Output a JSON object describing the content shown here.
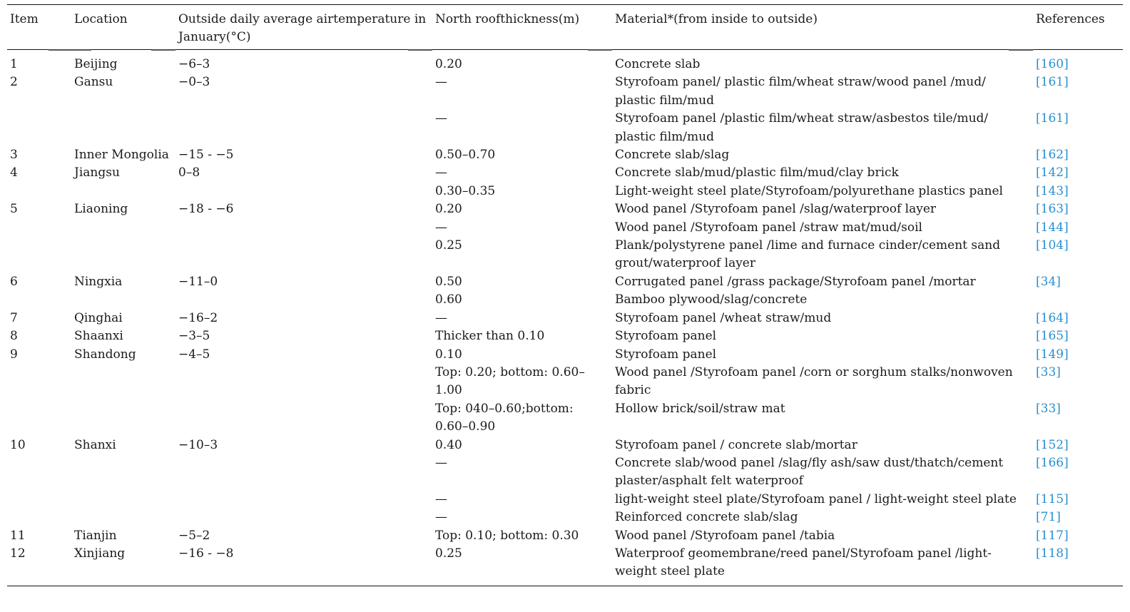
{
  "table": {
    "headers": {
      "item": "Item",
      "location": "Location",
      "temp": "Outside daily average airtemperature in January(°C)",
      "thickness": "North roofthickness(m)",
      "material": "Material*(from inside to outside)",
      "references": "References"
    },
    "rows": [
      {
        "item": "1",
        "location": "Beijing",
        "temp": "−6–3",
        "thickness": "0.20",
        "material": "Concrete slab",
        "ref": "[160]"
      },
      {
        "item": "2",
        "location": "Gansu",
        "temp": "−0–3",
        "thickness": "—",
        "material": "Styrofoam panel/ plastic film/wheat straw/wood panel /mud/ plastic film/mud",
        "ref": "[161]"
      },
      {
        "item": "",
        "location": "",
        "temp": "",
        "thickness": "—",
        "material": "Styrofoam panel /plastic film/wheat straw/asbestos tile/mud/ plastic film/mud",
        "ref": "[161]"
      },
      {
        "item": "3",
        "location": "Inner Mongolia",
        "temp": "−15 - −5",
        "thickness": "0.50–0.70",
        "material": "Concrete slab/slag",
        "ref": "[162]"
      },
      {
        "item": "4",
        "location": "Jiangsu",
        "temp": "0–8",
        "thickness": "—",
        "material": "Concrete slab/mud/plastic film/mud/clay brick",
        "ref": "[142]"
      },
      {
        "item": "",
        "location": "",
        "temp": "",
        "thickness": "0.30–0.35",
        "material": "Light-weight steel plate/Styrofoam/polyurethane plastics panel",
        "ref": "[143]"
      },
      {
        "item": "5",
        "location": "Liaoning",
        "temp": "−18 - −6",
        "thickness": "0.20",
        "material": "Wood panel /Styrofoam panel /slag/waterproof layer",
        "ref": "[163]"
      },
      {
        "item": "",
        "location": "",
        "temp": "",
        "thickness": "—",
        "material": "Wood panel /Styrofoam panel /straw mat/mud/soil",
        "ref": "[144]"
      },
      {
        "item": "",
        "location": "",
        "temp": "",
        "thickness": "0.25",
        "material": "Plank/polystyrene panel /lime and furnace cinder/cement sand grout/waterproof layer",
        "ref": "[104]"
      },
      {
        "item": "6",
        "location": "Ningxia",
        "temp": "−11–0",
        "thickness": "0.50",
        "material": "Corrugated panel /grass package/Styrofoam panel /mortar",
        "ref": "[34]"
      },
      {
        "item": "",
        "location": "",
        "temp": "",
        "thickness": "0.60",
        "material": "Bamboo plywood/slag/concrete",
        "ref": ""
      },
      {
        "item": "7",
        "location": "Qinghai",
        "temp": "−16–2",
        "thickness": "—",
        "material": "Styrofoam panel /wheat straw/mud",
        "ref": "[164]"
      },
      {
        "item": "8",
        "location": "Shaanxi",
        "temp": "−3–5",
        "thickness": "Thicker than 0.10",
        "material": "Styrofoam panel",
        "ref": "[165]"
      },
      {
        "item": "9",
        "location": "Shandong",
        "temp": "−4–5",
        "thickness": "0.10",
        "material": "Styrofoam panel",
        "ref": "[149]"
      },
      {
        "item": "",
        "location": "",
        "temp": "",
        "thickness": "Top: 0.20; bottom: 0.60–1.00",
        "material": "Wood panel /Styrofoam panel /corn or sorghum stalks/nonwoven fabric",
        "ref": "[33]"
      },
      {
        "item": "",
        "location": "",
        "temp": "",
        "thickness": "Top: 040–0.60;bottom: 0.60–0.90",
        "material": "Hollow brick/soil/straw mat",
        "ref": "[33]"
      },
      {
        "item": "10",
        "location": "Shanxi",
        "temp": "−10–3",
        "thickness": "0.40",
        "material": "Styrofoam panel / concrete slab/mortar",
        "ref": "[152]"
      },
      {
        "item": "",
        "location": "",
        "temp": "",
        "thickness": "—",
        "material": "Concrete slab/wood panel /slag/fly ash/saw dust/thatch/cement plaster/asphalt felt waterproof",
        "ref": "[166]"
      },
      {
        "item": "",
        "location": "",
        "temp": "",
        "thickness": "—",
        "material": "light-weight steel plate/Styrofoam panel / light-weight steel plate",
        "ref": "[115]"
      },
      {
        "item": "",
        "location": "",
        "temp": "",
        "thickness": "—",
        "material": "Reinforced concrete slab/slag",
        "ref": "[71]"
      },
      {
        "item": "11",
        "location": "Tianjin",
        "temp": "−5–2",
        "thickness": "Top: 0.10; bottom: 0.30",
        "material": "Wood panel /Styrofoam panel /tabia",
        "ref": "[117]"
      },
      {
        "item": "12",
        "location": "Xinjiang",
        "temp": "−16 - −8",
        "thickness": "0.25",
        "material": "Waterproof geomembrane/reed panel/Styrofoam panel /light-weight steel plate",
        "ref": "[118]"
      }
    ]
  }
}
